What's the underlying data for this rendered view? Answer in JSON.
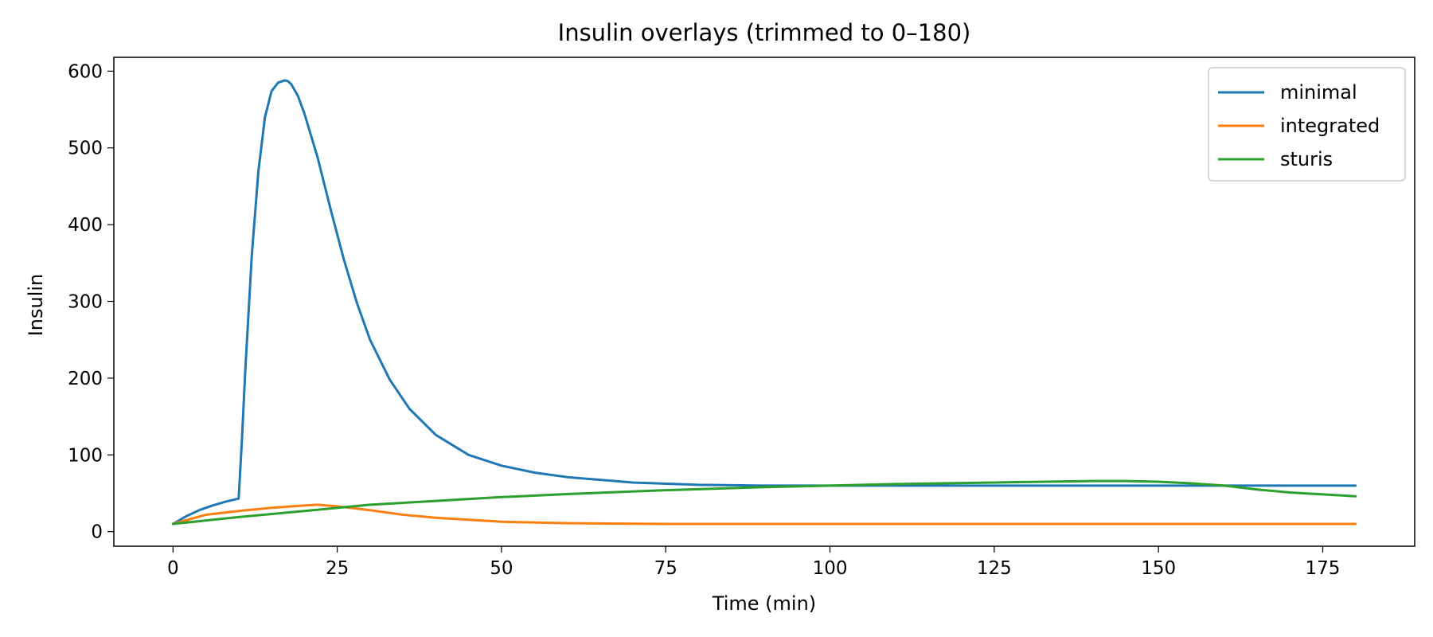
{
  "chart_data": {
    "type": "line",
    "title": "Insulin overlays (trimmed to 0–180)",
    "xlabel": "Time (min)",
    "ylabel": "Insulin",
    "xlim": [
      -9,
      189
    ],
    "ylim": [
      -19,
      618
    ],
    "xticks": [
      0,
      25,
      50,
      75,
      100,
      125,
      150,
      175
    ],
    "yticks": [
      0,
      100,
      200,
      300,
      400,
      500,
      600
    ],
    "grid": false,
    "legend_position": "top-right",
    "series": [
      {
        "name": "minimal",
        "color": "#1f77b4",
        "x": [
          0,
          2,
          4,
          6,
          8,
          10,
          10.5,
          11,
          12,
          13,
          14,
          15,
          16,
          17,
          17.5,
          18,
          19,
          20,
          22,
          24,
          26,
          28,
          30,
          33,
          36,
          40,
          45,
          50,
          55,
          60,
          70,
          80,
          90,
          100,
          120,
          140,
          160,
          180
        ],
        "y": [
          10,
          20,
          28,
          34,
          39,
          43,
          120,
          210,
          360,
          470,
          540,
          574,
          585,
          588,
          587,
          583,
          568,
          545,
          488,
          420,
          355,
          298,
          250,
          198,
          160,
          126,
          100,
          86,
          77,
          71,
          64,
          61,
          60,
          60,
          60,
          60,
          60,
          60
        ]
      },
      {
        "name": "integrated",
        "color": "#ff7f0e",
        "x": [
          0,
          5,
          10,
          15,
          20,
          22,
          25,
          30,
          35,
          40,
          50,
          60,
          75,
          100,
          125,
          150,
          180
        ],
        "y": [
          10,
          22,
          27,
          31,
          34,
          35,
          33,
          28,
          22,
          18,
          13,
          11,
          10,
          10,
          10,
          10,
          10
        ]
      },
      {
        "name": "sturis",
        "color": "#2ca02c",
        "x": [
          0,
          10,
          20,
          30,
          40,
          50,
          60,
          75,
          90,
          100,
          110,
          125,
          140,
          145,
          150,
          155,
          160,
          165,
          170,
          180
        ],
        "y": [
          10,
          19,
          27,
          35,
          40,
          45,
          49,
          54,
          58,
          60,
          62,
          64,
          66,
          66,
          65,
          63,
          60,
          55,
          51,
          46
        ]
      }
    ]
  }
}
